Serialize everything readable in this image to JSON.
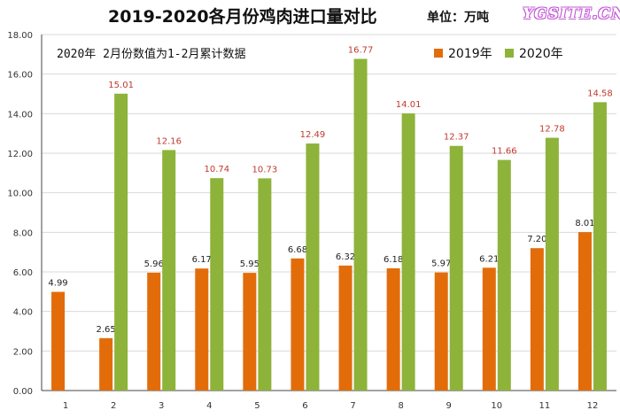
{
  "header": {
    "title": "2019-2020各月份鸡肉进口量对比",
    "unit": "单位：万吨",
    "watermark": "YGSITE.CN"
  },
  "note": "2020年 2月份数值为1-2月累计数据",
  "colors": {
    "series2019": "#e36c0a",
    "series2020": "#8db33a",
    "label2020": "#c0392b",
    "axis": "#444444",
    "grid": "#d9d9d9"
  },
  "chart_data": {
    "type": "bar",
    "categories": [
      "1",
      "2",
      "3",
      "4",
      "5",
      "6",
      "7",
      "8",
      "9",
      "10",
      "11",
      "12"
    ],
    "series": [
      {
        "name": "2019年",
        "values": [
          4.99,
          2.65,
          5.96,
          6.17,
          5.95,
          6.68,
          6.32,
          6.18,
          5.97,
          6.21,
          7.2,
          8.01
        ]
      },
      {
        "name": "2020年",
        "values": [
          null,
          15.01,
          12.16,
          10.74,
          10.73,
          12.49,
          16.77,
          14.01,
          12.37,
          11.66,
          12.78,
          14.58
        ]
      }
    ],
    "ylim": [
      0,
      18
    ],
    "yticks": [
      "0.00",
      "2.00",
      "4.00",
      "6.00",
      "8.00",
      "10.00",
      "12.00",
      "14.00",
      "16.00",
      "18.00"
    ],
    "grid": true,
    "legend": "top-right"
  }
}
